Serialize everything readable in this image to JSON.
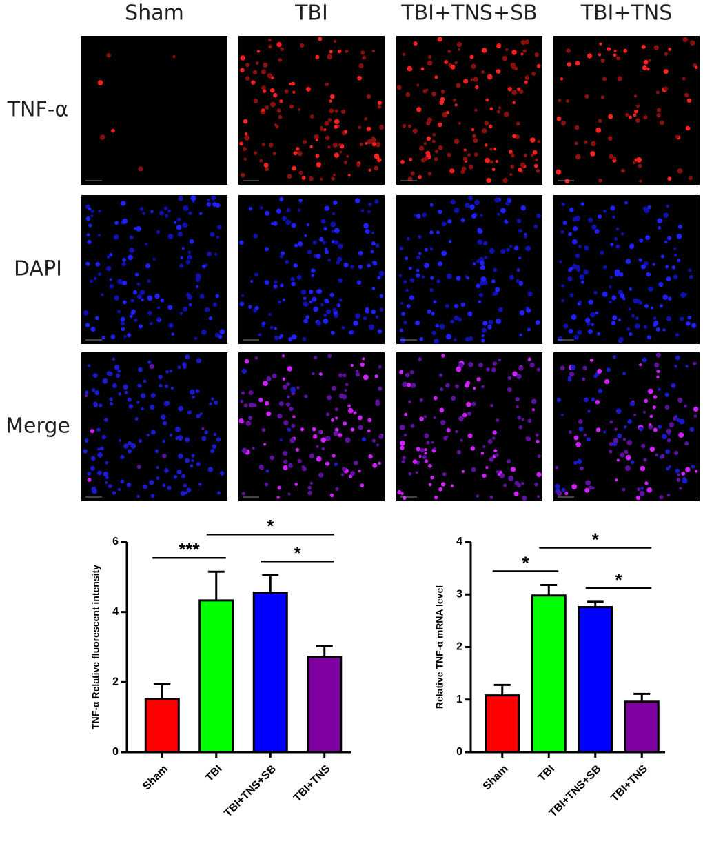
{
  "columns": [
    "Sham",
    "TBI",
    "TBI+TNS+SB",
    "TBI+TNS"
  ],
  "rows": [
    "TNF-α",
    "DAPI",
    "Merge"
  ],
  "chart_data": [
    {
      "type": "bar",
      "ylabel": "TNF-α Relative fluorescent intensity",
      "categories": [
        "Sham",
        "TBI",
        "TBI+TNS+SB",
        "TBI+TNS"
      ],
      "values": [
        1.52,
        4.33,
        4.55,
        2.72
      ],
      "errors": [
        0.42,
        0.82,
        0.5,
        0.3
      ],
      "colors": [
        "#ff0000",
        "#00ff00",
        "#0000ff",
        "#7f00a0"
      ],
      "ylim": [
        0,
        6
      ],
      "yticks": [
        0,
        2,
        4,
        6
      ],
      "annotations": [
        {
          "text": "***",
          "between": [
            "Sham",
            "TBI"
          ]
        },
        {
          "text": "*",
          "between": [
            "TBI+TNS+SB",
            "TBI+TNS"
          ]
        },
        {
          "text": "*",
          "between": [
            "TBI",
            "TBI+TNS"
          ]
        }
      ]
    },
    {
      "type": "bar",
      "ylabel": "Relative TNF-α  mRNA level",
      "categories": [
        "Sham",
        "TBI",
        "TBI+TNS+SB",
        "TBI+TNS"
      ],
      "values": [
        1.08,
        2.98,
        2.76,
        0.96
      ],
      "errors": [
        0.2,
        0.2,
        0.1,
        0.15
      ],
      "colors": [
        "#ff0000",
        "#00ff00",
        "#0000ff",
        "#7f00a0"
      ],
      "ylim": [
        0,
        4
      ],
      "yticks": [
        0,
        1,
        2,
        3,
        4
      ],
      "annotations": [
        {
          "text": "*",
          "between": [
            "Sham",
            "TBI"
          ]
        },
        {
          "text": "*",
          "between": [
            "TBI+TNS+SB",
            "TBI+TNS"
          ]
        },
        {
          "text": "*",
          "between": [
            "TBI",
            "TBI+TNS"
          ]
        }
      ]
    }
  ]
}
